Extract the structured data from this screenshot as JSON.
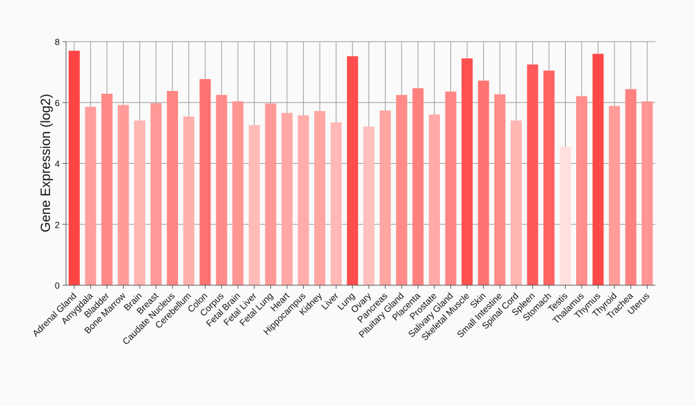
{
  "chart_data": {
    "type": "bar",
    "title": "",
    "xlabel": "",
    "ylabel": "Gene Expression (log2)",
    "ylim": [
      0,
      8
    ],
    "yticks": [
      0,
      2,
      4,
      6,
      8
    ],
    "grid": true,
    "categories": [
      "Adrenal Gland",
      "Amygdala",
      "Bladder",
      "Bone Marrow",
      "Brain",
      "Breast",
      "Caudate Nucleus",
      "Cerebellum",
      "Colon",
      "Corpus",
      "Fetal Brain",
      "Fetal Liver",
      "Fetal Lung",
      "Heart",
      "Hippocampus",
      "Kidney",
      "Liver",
      "Lung",
      "Ovary",
      "Pancreas",
      "Pituitary Gland",
      "Placenta",
      "Prostate",
      "Salivary Gland",
      "Skeletal Muscle",
      "Skin",
      "Small Intestine",
      "Spinal Cord",
      "Spleen",
      "Stomach",
      "Testis",
      "Thalamus",
      "Thymus",
      "Thyroid",
      "Trachea",
      "Uterus"
    ],
    "values": [
      7.7,
      5.86,
      6.29,
      5.92,
      5.41,
      5.98,
      6.38,
      5.54,
      6.77,
      6.25,
      6.04,
      5.26,
      5.97,
      5.66,
      5.58,
      5.72,
      5.35,
      7.52,
      5.21,
      5.74,
      6.25,
      6.47,
      5.61,
      6.36,
      7.45,
      6.72,
      6.27,
      5.41,
      7.25,
      7.05,
      4.54,
      6.21,
      7.6,
      5.89,
      6.44,
      6.04
    ],
    "color_range": {
      "low": "#ffe0dc",
      "high": "#ff4444"
    }
  }
}
